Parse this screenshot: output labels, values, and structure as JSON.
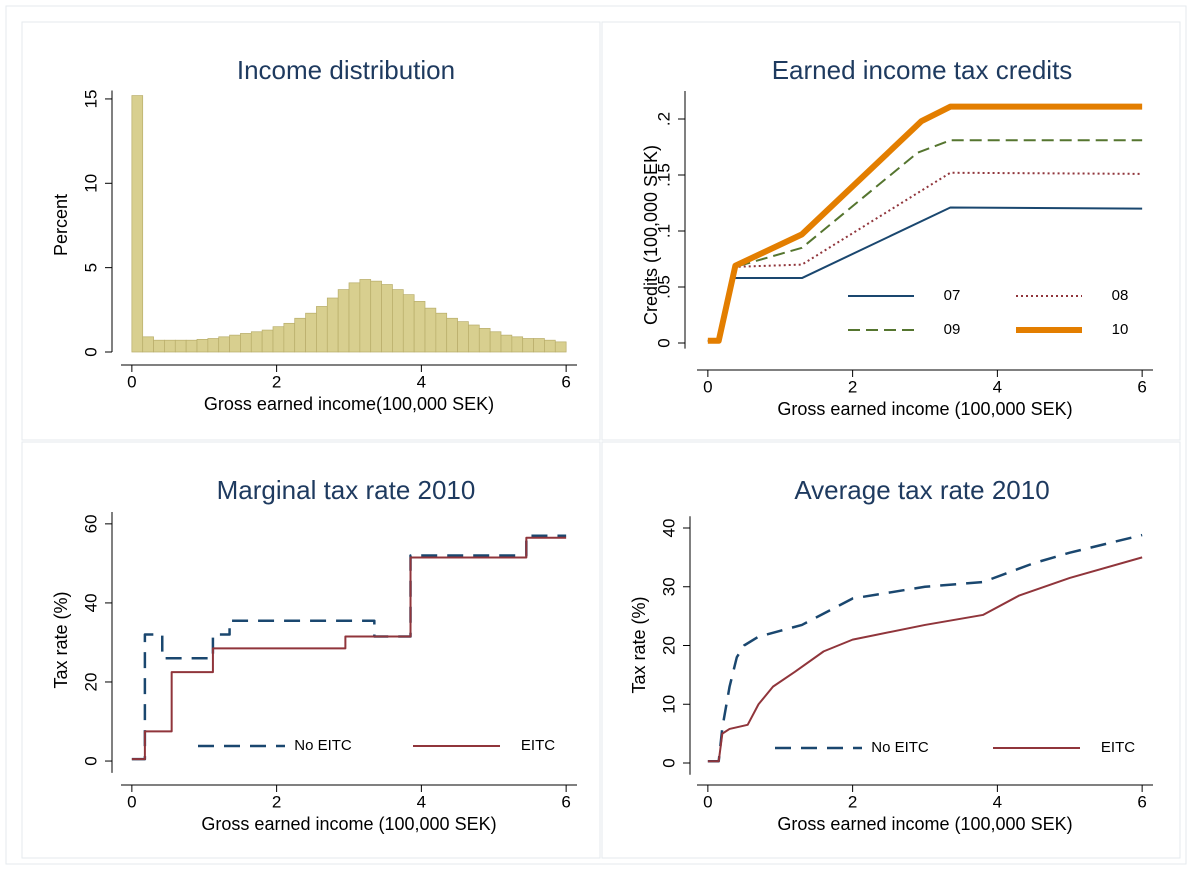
{
  "chart_data": [
    {
      "type": "histogram",
      "title": "Income distribution",
      "x_label": "Gross earned income(100,000 SEK)",
      "y_label": "Percent",
      "color": "#d8cf8f",
      "bins": [
        0,
        0.15,
        0.3,
        0.45,
        0.6,
        0.75,
        0.9,
        1.05,
        1.2,
        1.35,
        1.5,
        1.65,
        1.8,
        1.95,
        2.1,
        2.25,
        2.4,
        2.55,
        2.7,
        2.85,
        3,
        3.15,
        3.3,
        3.45,
        3.6,
        3.75,
        3.9,
        4.05,
        4.2,
        4.35,
        4.5,
        4.65,
        4.8,
        4.95,
        5.1,
        5.25,
        5.4,
        5.55,
        5.7,
        5.85,
        6
      ],
      "values": [
        15.2,
        0.9,
        0.7,
        0.7,
        0.7,
        0.7,
        0.75,
        0.8,
        0.9,
        1.0,
        1.1,
        1.2,
        1.3,
        1.5,
        1.7,
        2.0,
        2.3,
        2.7,
        3.2,
        3.7,
        4.1,
        4.3,
        4.2,
        4.0,
        3.7,
        3.4,
        3.0,
        2.6,
        2.3,
        2.0,
        1.8,
        1.6,
        1.4,
        1.2,
        1.0,
        0.9,
        0.8,
        0.8,
        0.7,
        0.6
      ],
      "xlim": [
        -0.15,
        6.15
      ],
      "xticks": [
        0,
        2,
        4,
        6
      ],
      "ylim": [
        0,
        15.5
      ],
      "yticks": [
        0,
        5,
        10,
        15
      ]
    },
    {
      "type": "line",
      "title": "Earned income tax credits",
      "x_label": "Gross earned income (100,000 SEK)",
      "y_label": "Credits (100,000 SEK)",
      "legend": "lower right",
      "series": [
        {
          "name": "07",
          "color": "#1a476f",
          "style": "solid",
          "x": [
            0,
            0.15,
            0.35,
            1.3,
            3.35,
            6
          ],
          "values": [
            0.002,
            0.002,
            0.058,
            0.058,
            0.121,
            0.12
          ]
        },
        {
          "name": "08",
          "color": "#90353b",
          "style": "dot",
          "x": [
            0,
            0.15,
            0.38,
            1.3,
            3.35,
            6
          ],
          "values": [
            0.002,
            0.002,
            0.068,
            0.07,
            0.152,
            0.151
          ]
        },
        {
          "name": "09",
          "color": "#55752f",
          "style": "dash",
          "x": [
            0,
            0.15,
            0.38,
            1.3,
            2.9,
            3.35,
            6
          ],
          "values": [
            0.002,
            0.002,
            0.068,
            0.085,
            0.17,
            0.181,
            0.181
          ]
        },
        {
          "name": "10",
          "color": "#e37e00",
          "style": "thick",
          "x": [
            0,
            0.15,
            0.38,
            1.3,
            2.95,
            3.35,
            6
          ],
          "values": [
            0.002,
            0.002,
            0.069,
            0.097,
            0.198,
            0.211,
            0.211
          ]
        }
      ],
      "xlim": [
        -0.15,
        6.15
      ],
      "xticks": [
        0,
        2,
        4,
        6
      ],
      "ylim": [
        -0.005,
        0.225
      ],
      "yticks": [
        0,
        {
          "value": 0.05,
          "label": ".05"
        },
        {
          "value": 0.1,
          "label": ".1"
        },
        {
          "value": 0.15,
          "label": ".15"
        },
        {
          "value": 0.2,
          "label": ".2"
        }
      ]
    },
    {
      "type": "line",
      "title": "Marginal tax rate 2010",
      "x_label": "Gross earned income (100,000 SEK)",
      "y_label": "Tax rate (%)",
      "legend": "bottom",
      "series": [
        {
          "name": "No EITC",
          "color": "#1a476f",
          "style": "longdash",
          "x": [
            0,
            0.18,
            0.18,
            0.42,
            0.42,
            1.12,
            1.12,
            1.35,
            1.35,
            3.35,
            3.35,
            3.85,
            3.85,
            5.45,
            5.45,
            6
          ],
          "values": [
            0.5,
            0.5,
            32,
            32,
            26,
            26,
            32,
            32,
            35.5,
            35.5,
            31.5,
            31.5,
            52,
            52,
            57,
            57
          ]
        },
        {
          "name": "EITC",
          "color": "#90353b",
          "style": "solid",
          "x": [
            0,
            0.18,
            0.18,
            0.55,
            0.55,
            1.12,
            1.12,
            2.95,
            2.95,
            3.85,
            3.85,
            5.45,
            5.45,
            6
          ],
          "values": [
            0.5,
            0.5,
            7.5,
            7.5,
            22.5,
            22.5,
            28.5,
            28.5,
            31.5,
            31.5,
            51.5,
            51.5,
            56.5,
            56.5
          ]
        }
      ],
      "xlim": [
        -0.15,
        6.15
      ],
      "xticks": [
        0,
        2,
        4,
        6
      ],
      "ylim": [
        -3,
        63
      ],
      "yticks": [
        0,
        20,
        40,
        60
      ]
    },
    {
      "type": "line",
      "title": "Average tax rate 2010",
      "x_label": "Gross earned income (100,000 SEK)",
      "y_label": "Tax rate (%)",
      "legend": "bottom",
      "series": [
        {
          "name": "No EITC",
          "color": "#1a476f",
          "style": "longdash",
          "x": [
            0,
            0.15,
            0.2,
            0.3,
            0.4,
            0.5,
            0.7,
            1,
            1.3,
            2,
            3,
            3.8,
            4.5,
            5,
            5.5,
            6
          ],
          "values": [
            0.3,
            0.3,
            6,
            13,
            18,
            20,
            21.5,
            22.5,
            23.5,
            28,
            30,
            30.8,
            34,
            35.8,
            37.3,
            38.8
          ]
        },
        {
          "name": "EITC",
          "color": "#90353b",
          "style": "solid",
          "x": [
            0,
            0.15,
            0.2,
            0.3,
            0.55,
            0.7,
            0.9,
            1.2,
            1.6,
            2,
            3,
            3.8,
            4.3,
            5,
            6
          ],
          "values": [
            0.3,
            0.3,
            5,
            5.8,
            6.5,
            10,
            13,
            15.5,
            19,
            21,
            23.5,
            25.2,
            28.5,
            31.5,
            35
          ]
        }
      ],
      "xlim": [
        -0.15,
        6.15
      ],
      "xticks": [
        0,
        2,
        4,
        6
      ],
      "ylim": [
        -2,
        42
      ],
      "yticks": [
        0,
        10,
        20,
        30,
        40
      ]
    }
  ]
}
